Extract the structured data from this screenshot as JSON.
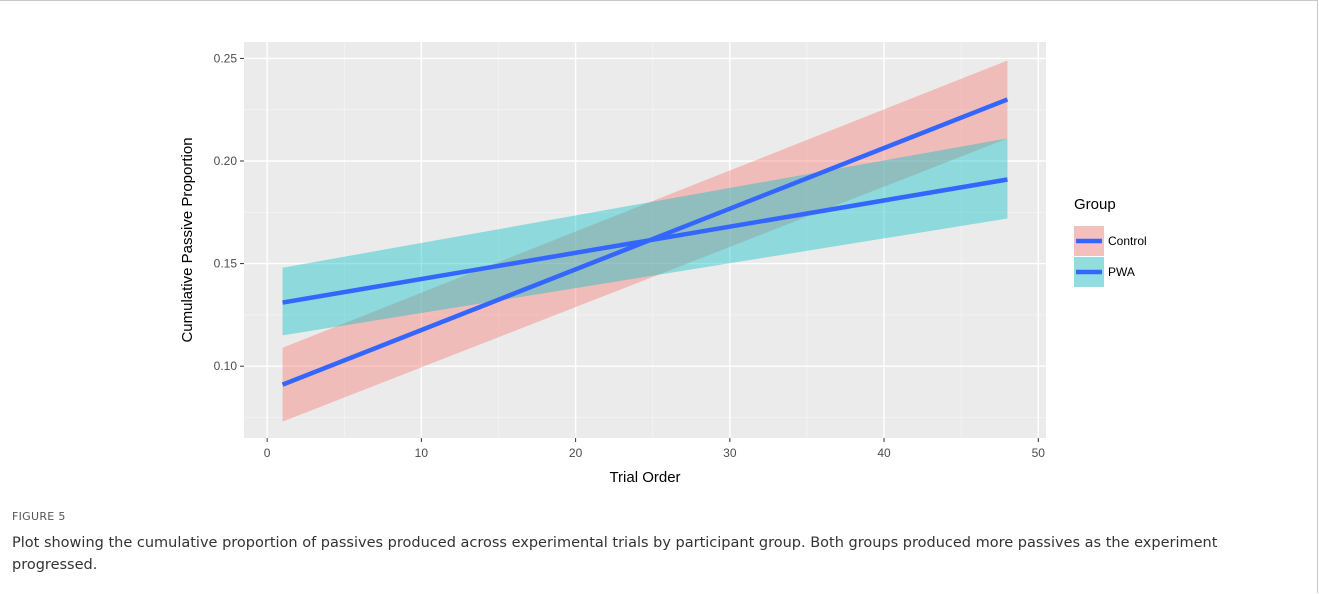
{
  "chart_data": {
    "type": "line",
    "xlabel": "Trial Order",
    "ylabel": "Cumulative Passive Proportion",
    "xlim": [
      -1.5,
      50.5
    ],
    "ylim": [
      0.065,
      0.258
    ],
    "x_ticks": [
      0,
      10,
      20,
      30,
      40,
      50
    ],
    "x_tick_labels": [
      "0",
      "10",
      "20",
      "30",
      "40",
      "50"
    ],
    "y_ticks": [
      0.1,
      0.15,
      0.2,
      0.25
    ],
    "y_tick_labels": [
      "0.10",
      "0.15",
      "0.20",
      "0.25"
    ],
    "grid": true,
    "legend": {
      "title": "Group",
      "position": "right"
    },
    "series": [
      {
        "name": "Control",
        "fill": "#f8766d",
        "line": "#3366ff",
        "x": [
          1,
          48
        ],
        "y": [
          0.091,
          0.23
        ],
        "lower": [
          0.073,
          0.211
        ],
        "upper": [
          0.109,
          0.249
        ]
      },
      {
        "name": "PWA",
        "fill": "#00bfc4",
        "line": "#3366ff",
        "x": [
          1,
          48
        ],
        "y": [
          0.131,
          0.191
        ],
        "lower": [
          0.115,
          0.172
        ],
        "upper": [
          0.148,
          0.211
        ]
      }
    ]
  },
  "caption": {
    "label": "FIGURE 5",
    "text": "Plot showing the cumulative proportion of passives produced across experimental trials by participant group. Both groups produced more passives as the experiment progressed."
  }
}
